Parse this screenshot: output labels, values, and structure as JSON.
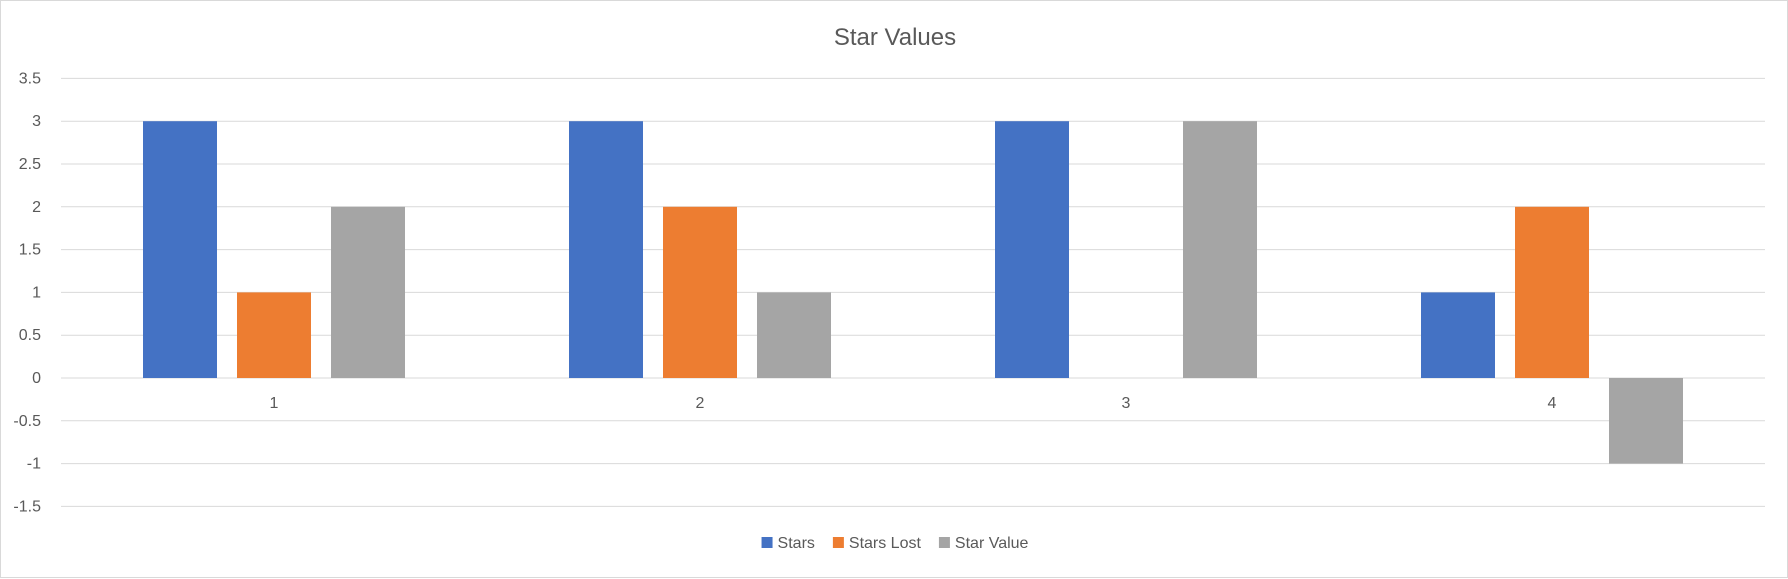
{
  "chart_data": {
    "type": "bar",
    "title": "Star Values",
    "categories": [
      "1",
      "2",
      "3",
      "4"
    ],
    "series": [
      {
        "name": "Stars",
        "values": [
          3,
          3,
          3,
          1
        ],
        "color": "#4472c4"
      },
      {
        "name": "Stars Lost",
        "values": [
          1,
          2,
          0,
          2
        ],
        "color": "#ed7d31"
      },
      {
        "name": "Star Value",
        "values": [
          2,
          1,
          3,
          -1
        ],
        "color": "#a5a5a5"
      }
    ],
    "y_ticks": [
      "3.5",
      "3",
      "2.5",
      "2",
      "1.5",
      "1",
      "0.5",
      "0",
      "-0.5",
      "-1",
      "-1.5"
    ],
    "ylim": [
      -1.5,
      3.5
    ],
    "y_step": 0.5,
    "grid": true,
    "legend_position": "bottom"
  }
}
